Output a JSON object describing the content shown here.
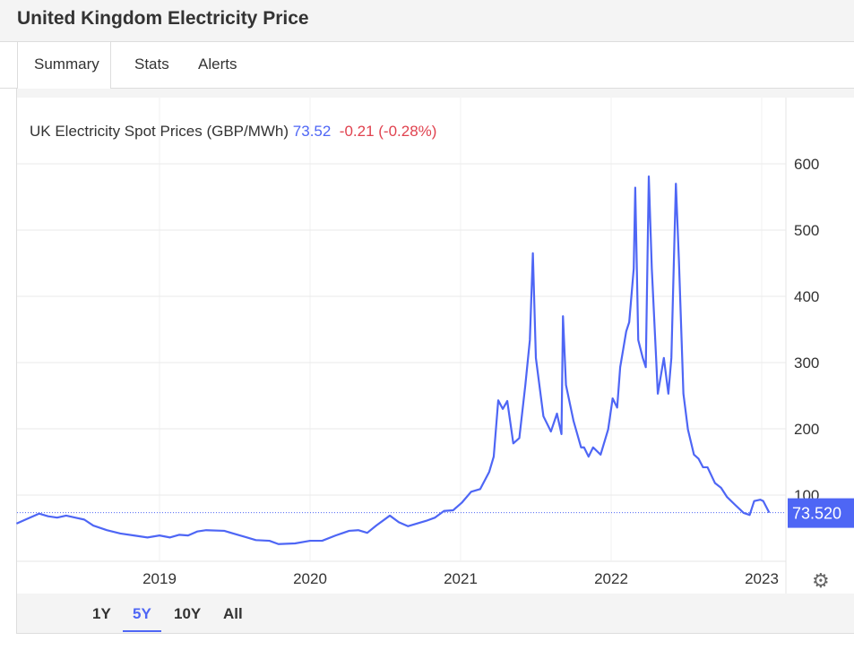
{
  "header": {
    "title": "United Kingdom Electricity Price"
  },
  "tabs": [
    {
      "label": "Summary"
    },
    {
      "label": "Stats"
    },
    {
      "label": "Alerts"
    }
  ],
  "legend": {
    "series": "UK Electricity Spot Prices (GBP/MWh)",
    "value": "73.52",
    "change": "-0.21 (-0.28%)"
  },
  "price_tag": "73.520",
  "ranges": [
    {
      "label": "1Y"
    },
    {
      "label": "5Y"
    },
    {
      "label": "10Y"
    },
    {
      "label": "All"
    }
  ],
  "colors": {
    "line": "#4e66f5",
    "negative": "#e0424f"
  },
  "chart_data": {
    "type": "line",
    "title": "UK Electricity Spot Prices (GBP/MWh)",
    "xlabel": "",
    "ylabel": "",
    "x_ticks": [
      "2019",
      "2020",
      "2021",
      "2022",
      "2023"
    ],
    "y_ticks": [
      "100",
      "200",
      "300",
      "400",
      "500",
      "600"
    ],
    "ylim": [
      0,
      600
    ],
    "xlim": [
      2018.05,
      2023.17
    ],
    "last_value": 73.52,
    "series": [
      {
        "name": "UK Electricity Spot Prices",
        "points": [
          [
            2018.05,
            57
          ],
          [
            2018.11,
            63
          ],
          [
            2018.2,
            72
          ],
          [
            2018.26,
            68
          ],
          [
            2018.32,
            66
          ],
          [
            2018.38,
            69
          ],
          [
            2018.44,
            66
          ],
          [
            2018.5,
            63
          ],
          [
            2018.56,
            54
          ],
          [
            2018.65,
            47
          ],
          [
            2018.74,
            42
          ],
          [
            2018.83,
            39
          ],
          [
            2018.92,
            36
          ],
          [
            2019.0,
            39
          ],
          [
            2019.07,
            36
          ],
          [
            2019.13,
            40
          ],
          [
            2019.19,
            39
          ],
          [
            2019.25,
            45
          ],
          [
            2019.31,
            47
          ],
          [
            2019.43,
            46
          ],
          [
            2019.49,
            42
          ],
          [
            2019.58,
            36
          ],
          [
            2019.64,
            32
          ],
          [
            2019.73,
            31
          ],
          [
            2019.79,
            26
          ],
          [
            2019.9,
            27
          ],
          [
            2020.0,
            31
          ],
          [
            2020.08,
            31
          ],
          [
            2020.17,
            39
          ],
          [
            2020.26,
            46
          ],
          [
            2020.32,
            47
          ],
          [
            2020.38,
            43
          ],
          [
            2020.44,
            54
          ],
          [
            2020.53,
            69
          ],
          [
            2020.59,
            59
          ],
          [
            2020.65,
            53
          ],
          [
            2020.71,
            57
          ],
          [
            2020.77,
            61
          ],
          [
            2020.83,
            66
          ],
          [
            2020.89,
            76
          ],
          [
            2020.95,
            77
          ],
          [
            2021.01,
            89
          ],
          [
            2021.07,
            105
          ],
          [
            2021.13,
            109
          ],
          [
            2021.19,
            135
          ],
          [
            2021.22,
            158
          ],
          [
            2021.25,
            243
          ],
          [
            2021.28,
            230
          ],
          [
            2021.31,
            242
          ],
          [
            2021.35,
            178
          ],
          [
            2021.39,
            186
          ],
          [
            2021.43,
            266
          ],
          [
            2021.46,
            334
          ],
          [
            2021.48,
            465
          ],
          [
            2021.5,
            307
          ],
          [
            2021.55,
            219
          ],
          [
            2021.6,
            196
          ],
          [
            2021.64,
            223
          ],
          [
            2021.67,
            192
          ],
          [
            2021.68,
            370
          ],
          [
            2021.7,
            266
          ],
          [
            2021.75,
            212
          ],
          [
            2021.8,
            172
          ],
          [
            2021.82,
            172
          ],
          [
            2021.85,
            158
          ],
          [
            2021.88,
            172
          ],
          [
            2021.93,
            161
          ],
          [
            2021.98,
            199
          ],
          [
            2022.01,
            246
          ],
          [
            2022.04,
            232
          ],
          [
            2022.06,
            293
          ],
          [
            2022.1,
            347
          ],
          [
            2022.12,
            361
          ],
          [
            2022.15,
            442
          ],
          [
            2022.16,
            564
          ],
          [
            2022.18,
            334
          ],
          [
            2022.21,
            307
          ],
          [
            2022.23,
            293
          ],
          [
            2022.25,
            581
          ],
          [
            2022.27,
            442
          ],
          [
            2022.31,
            253
          ],
          [
            2022.35,
            307
          ],
          [
            2022.38,
            253
          ],
          [
            2022.4,
            307
          ],
          [
            2022.43,
            570
          ],
          [
            2022.45,
            455
          ],
          [
            2022.48,
            253
          ],
          [
            2022.51,
            199
          ],
          [
            2022.55,
            161
          ],
          [
            2022.58,
            155
          ],
          [
            2022.61,
            142
          ],
          [
            2022.64,
            142
          ],
          [
            2022.69,
            118
          ],
          [
            2022.73,
            111
          ],
          [
            2022.77,
            97
          ],
          [
            2022.82,
            86
          ],
          [
            2022.88,
            73
          ],
          [
            2022.92,
            70
          ],
          [
            2022.95,
            91
          ],
          [
            2022.99,
            93
          ],
          [
            2023.01,
            91
          ],
          [
            2023.05,
            73.52
          ]
        ]
      }
    ]
  }
}
